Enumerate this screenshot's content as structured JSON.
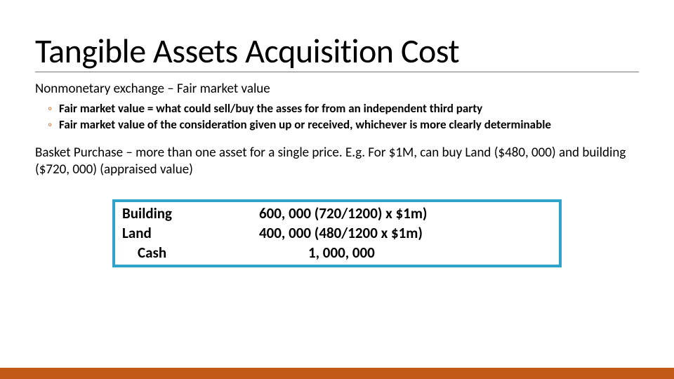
{
  "title": "Tangible Assets Acquisition Cost",
  "heading1": "Nonmonetary exchange – Fair market value",
  "sub1": "Fair market value = what could sell/buy the asses for from an independent third party",
  "sub2": "Fair market value of the consideration given up or received, whichever is more clearly determinable",
  "para": "Basket Purchase – more than one asset for a single price.  E.g. For $1M, can buy Land ($480, 000) and building ($720, 000) (appraised value)",
  "table": {
    "r1c1": "Building",
    "r1c2": "600, 000 (720/1200) x $1m)",
    "r2c1": "Land",
    "r2c2": "400, 000 (480/1200 x $1m)",
    "r3c1": "Cash",
    "r3c2": "1, 000, 000"
  },
  "colors": {
    "accent_orange": "#c25a17",
    "box_border": "#2fa3c9",
    "bullet": "#d97b3e"
  }
}
